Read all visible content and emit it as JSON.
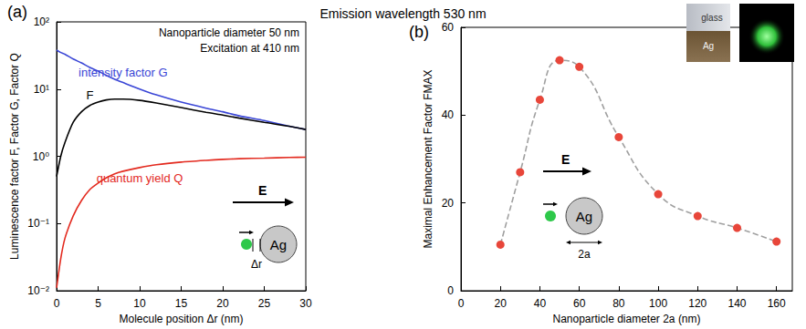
{
  "suptitle": "Emission wavelength 530 nm",
  "chart_data": [
    {
      "panel": "(a)",
      "type": "line",
      "log": "y",
      "grid": false,
      "x_label": "Molecule position Δr (nm)",
      "y_label": "Luminescence factor F, Factor G, Factor Q",
      "x": [
        0,
        0.5,
        1,
        2,
        3,
        4,
        5,
        6,
        7,
        8,
        10,
        12,
        15,
        18,
        20,
        22,
        25,
        28,
        30
      ],
      "series": [
        {
          "name": "intensity factor G",
          "color": "#3a46d6",
          "values": [
            38,
            35,
            33,
            28,
            24.5,
            21,
            18.5,
            16,
            14,
            12.5,
            10,
            8.2,
            6.4,
            5.2,
            4.6,
            4.0,
            3.4,
            2.8,
            2.5
          ]
        },
        {
          "name": "F",
          "color": "#000000",
          "values": [
            0.5,
            1.0,
            1.6,
            3.2,
            4.6,
            5.7,
            6.4,
            6.9,
            7.1,
            7.1,
            6.8,
            6.2,
            5.3,
            4.5,
            4.1,
            3.7,
            3.2,
            2.8,
            2.5
          ]
        },
        {
          "name": "quantum yield Q",
          "color": "#e32a1f",
          "values": [
            0.011,
            0.03,
            0.06,
            0.13,
            0.22,
            0.32,
            0.4,
            0.48,
            0.55,
            0.6,
            0.68,
            0.75,
            0.82,
            0.87,
            0.9,
            0.92,
            0.94,
            0.96,
            0.97
          ]
        }
      ],
      "xlim": [
        0,
        30
      ],
      "xticks": [
        0,
        5,
        10,
        15,
        20,
        25,
        30
      ],
      "ylim": [
        0.01,
        100
      ],
      "yticks": [
        {
          "value": 0.01,
          "label": "10⁻²"
        },
        {
          "value": 0.1,
          "label": "10⁻¹"
        },
        {
          "value": 1,
          "label": "10⁰"
        },
        {
          "value": 10,
          "label": "10¹"
        },
        {
          "value": 100,
          "label": "10²"
        }
      ],
      "annotations": [
        "Nanoparticle diameter 50 nm",
        "Excitation at 410 nm"
      ],
      "inset_labels": {
        "field": "E",
        "particle": "Ag",
        "distance": "Δr"
      }
    },
    {
      "panel": "(b)",
      "type": "line",
      "marker": "circle",
      "line_style": "dashed",
      "grid": false,
      "x_label": "Nanoparticle diameter 2a (nm)",
      "y_label": "Maximal Enhancement Factor FMAX",
      "x": [
        20,
        30,
        40,
        50,
        60,
        80,
        100,
        120,
        140,
        160
      ],
      "series": [
        {
          "color": "#e8463a",
          "values": [
            10.5,
            27,
            43.5,
            52.5,
            51,
            35,
            22,
            17,
            14.3,
            11.2
          ]
        }
      ],
      "xlim": [
        0,
        168
      ],
      "xticks": [
        0,
        20,
        40,
        60,
        80,
        100,
        120,
        140,
        160
      ],
      "ylim": [
        0,
        60
      ],
      "yticks": [
        0,
        20,
        40,
        60
      ],
      "inset_labels": {
        "field": "E",
        "particle": "Ag",
        "diameter": "2a"
      },
      "photo_labels": [
        "glass",
        "Ag"
      ]
    }
  ]
}
